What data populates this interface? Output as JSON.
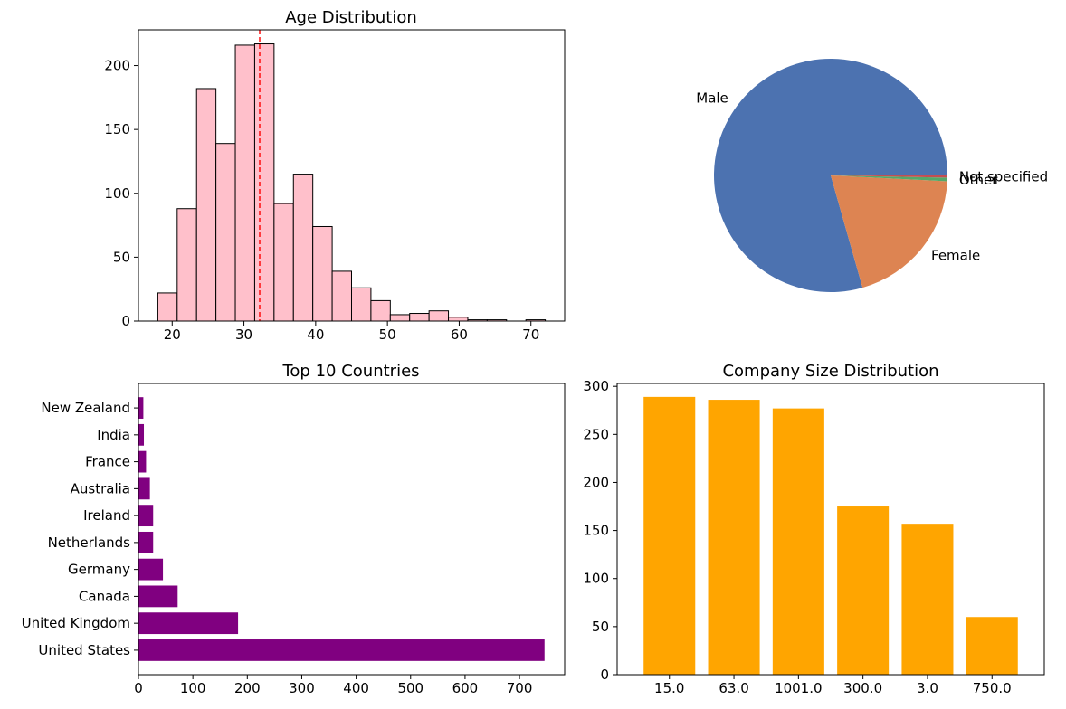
{
  "chart_data": [
    {
      "type": "bar",
      "subtype": "histogram",
      "title": "Age Distribution",
      "xlabel": "",
      "ylabel": "",
      "bins": [
        {
          "x0": 18,
          "x1": 20.7,
          "count": 22
        },
        {
          "x0": 20.7,
          "x1": 23.4,
          "count": 88
        },
        {
          "x0": 23.4,
          "x1": 26.1,
          "count": 182
        },
        {
          "x0": 26.1,
          "x1": 28.8,
          "count": 139
        },
        {
          "x0": 28.8,
          "x1": 31.5,
          "count": 216
        },
        {
          "x0": 31.5,
          "x1": 34.2,
          "count": 217
        },
        {
          "x0": 34.2,
          "x1": 36.9,
          "count": 92
        },
        {
          "x0": 36.9,
          "x1": 39.6,
          "count": 115
        },
        {
          "x0": 39.6,
          "x1": 42.3,
          "count": 74
        },
        {
          "x0": 42.3,
          "x1": 45.0,
          "count": 39
        },
        {
          "x0": 45.0,
          "x1": 47.7,
          "count": 26
        },
        {
          "x0": 47.7,
          "x1": 50.4,
          "count": 16
        },
        {
          "x0": 50.4,
          "x1": 53.1,
          "count": 5
        },
        {
          "x0": 53.1,
          "x1": 55.8,
          "count": 6
        },
        {
          "x0": 55.8,
          "x1": 58.5,
          "count": 8
        },
        {
          "x0": 58.5,
          "x1": 61.2,
          "count": 3
        },
        {
          "x0": 61.2,
          "x1": 63.9,
          "count": 1
        },
        {
          "x0": 63.9,
          "x1": 66.6,
          "count": 1
        },
        {
          "x0": 66.6,
          "x1": 69.3,
          "count": 0
        },
        {
          "x0": 69.3,
          "x1": 72.0,
          "count": 1
        }
      ],
      "mean_line": 32.2,
      "xlim": [
        15.3,
        74.7
      ],
      "ylim": [
        0,
        228
      ],
      "xticks": [
        20,
        30,
        40,
        50,
        60,
        70
      ],
      "yticks": [
        0,
        50,
        100,
        150,
        200
      ],
      "bar_color": "#ffc0cb",
      "edge_color": "#000000",
      "mean_line_color": "#ff0000"
    },
    {
      "type": "pie",
      "title": "",
      "slices": [
        {
          "label": "Male",
          "value": 79.4,
          "color": "#4c72b0"
        },
        {
          "label": "Female",
          "value": 19.8,
          "color": "#dd8452"
        },
        {
          "label": "Other",
          "value": 0.5,
          "color": "#55a868"
        },
        {
          "label": "Not specified",
          "value": 0.3,
          "color": "#c44e52"
        }
      ]
    },
    {
      "type": "bar",
      "orientation": "horizontal",
      "title": "Top 10 Countries",
      "categories": [
        "United States",
        "United Kingdom",
        "Canada",
        "Germany",
        "Netherlands",
        "Ireland",
        "Australia",
        "France",
        "India",
        "New Zealand"
      ],
      "values": [
        746,
        183,
        72,
        45,
        27,
        27,
        21,
        14,
        10,
        9
      ],
      "xlim": [
        0,
        783
      ],
      "xticks": [
        0,
        100,
        200,
        300,
        400,
        500,
        600,
        700
      ],
      "color": "#800080"
    },
    {
      "type": "bar",
      "title": "Company Size Distribution",
      "categories": [
        "15.0",
        "63.0",
        "1001.0",
        "300.0",
        "3.0",
        "750.0"
      ],
      "values": [
        289,
        286,
        277,
        175,
        157,
        60
      ],
      "ylim": [
        0,
        303
      ],
      "yticks": [
        0,
        50,
        100,
        150,
        200,
        250,
        300
      ],
      "color": "#ffa500"
    }
  ]
}
